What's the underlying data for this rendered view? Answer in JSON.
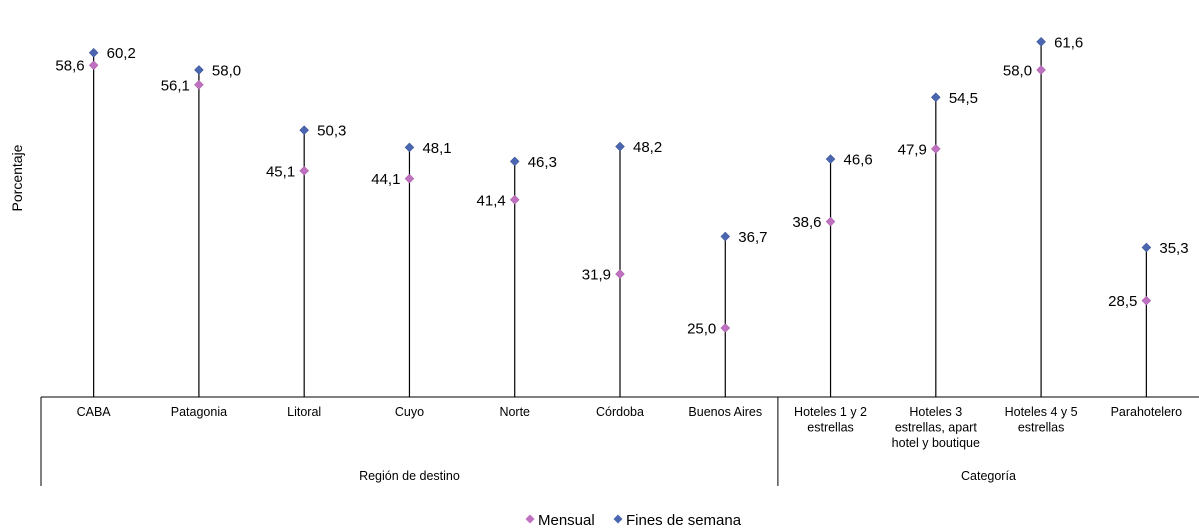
{
  "chart_data": {
    "type": "dot-stem",
    "ylabel": "Porcentaje",
    "ylim": [
      0,
      65
    ],
    "categories": [
      {
        "lines": [
          "CABA"
        ]
      },
      {
        "lines": [
          "Patagonia"
        ]
      },
      {
        "lines": [
          "Litoral"
        ]
      },
      {
        "lines": [
          "Cuyo"
        ]
      },
      {
        "lines": [
          "Norte"
        ]
      },
      {
        "lines": [
          "Córdoba"
        ]
      },
      {
        "lines": [
          "Buenos Aires"
        ]
      },
      {
        "lines": [
          "Hoteles 1 y 2",
          "estrellas"
        ]
      },
      {
        "lines": [
          "Hoteles 3",
          "estrellas, apart",
          "hotel y boutique"
        ]
      },
      {
        "lines": [
          "Hoteles 4 y 5",
          "estrellas"
        ]
      },
      {
        "lines": [
          "Parahotelero"
        ]
      }
    ],
    "groups": [
      {
        "label": "Región de destino",
        "span": [
          0,
          6
        ]
      },
      {
        "label": "Categoría",
        "span": [
          7,
          10
        ]
      }
    ],
    "series": [
      {
        "name": "Mensual",
        "color": "#c070c0",
        "values": [
          58.6,
          56.1,
          45.1,
          44.1,
          41.4,
          31.9,
          25.0,
          38.6,
          47.9,
          58.0,
          28.5
        ],
        "labels": [
          "58,6",
          "56,1",
          "45,1",
          "44,1",
          "41,4",
          "31,9",
          "25,0",
          "38,6",
          "47,9",
          "58,0",
          "28,5"
        ]
      },
      {
        "name": "Fines de semana",
        "color": "#4a66b0",
        "values": [
          60.2,
          58.0,
          50.3,
          48.1,
          46.3,
          48.2,
          36.7,
          46.6,
          54.5,
          61.6,
          35.3
        ],
        "labels": [
          "60,2",
          "58,0",
          "50,3",
          "48,1",
          "46,3",
          "48,2",
          "36,7",
          "46,6",
          "54,5",
          "61,6",
          "35,3"
        ]
      }
    ]
  }
}
